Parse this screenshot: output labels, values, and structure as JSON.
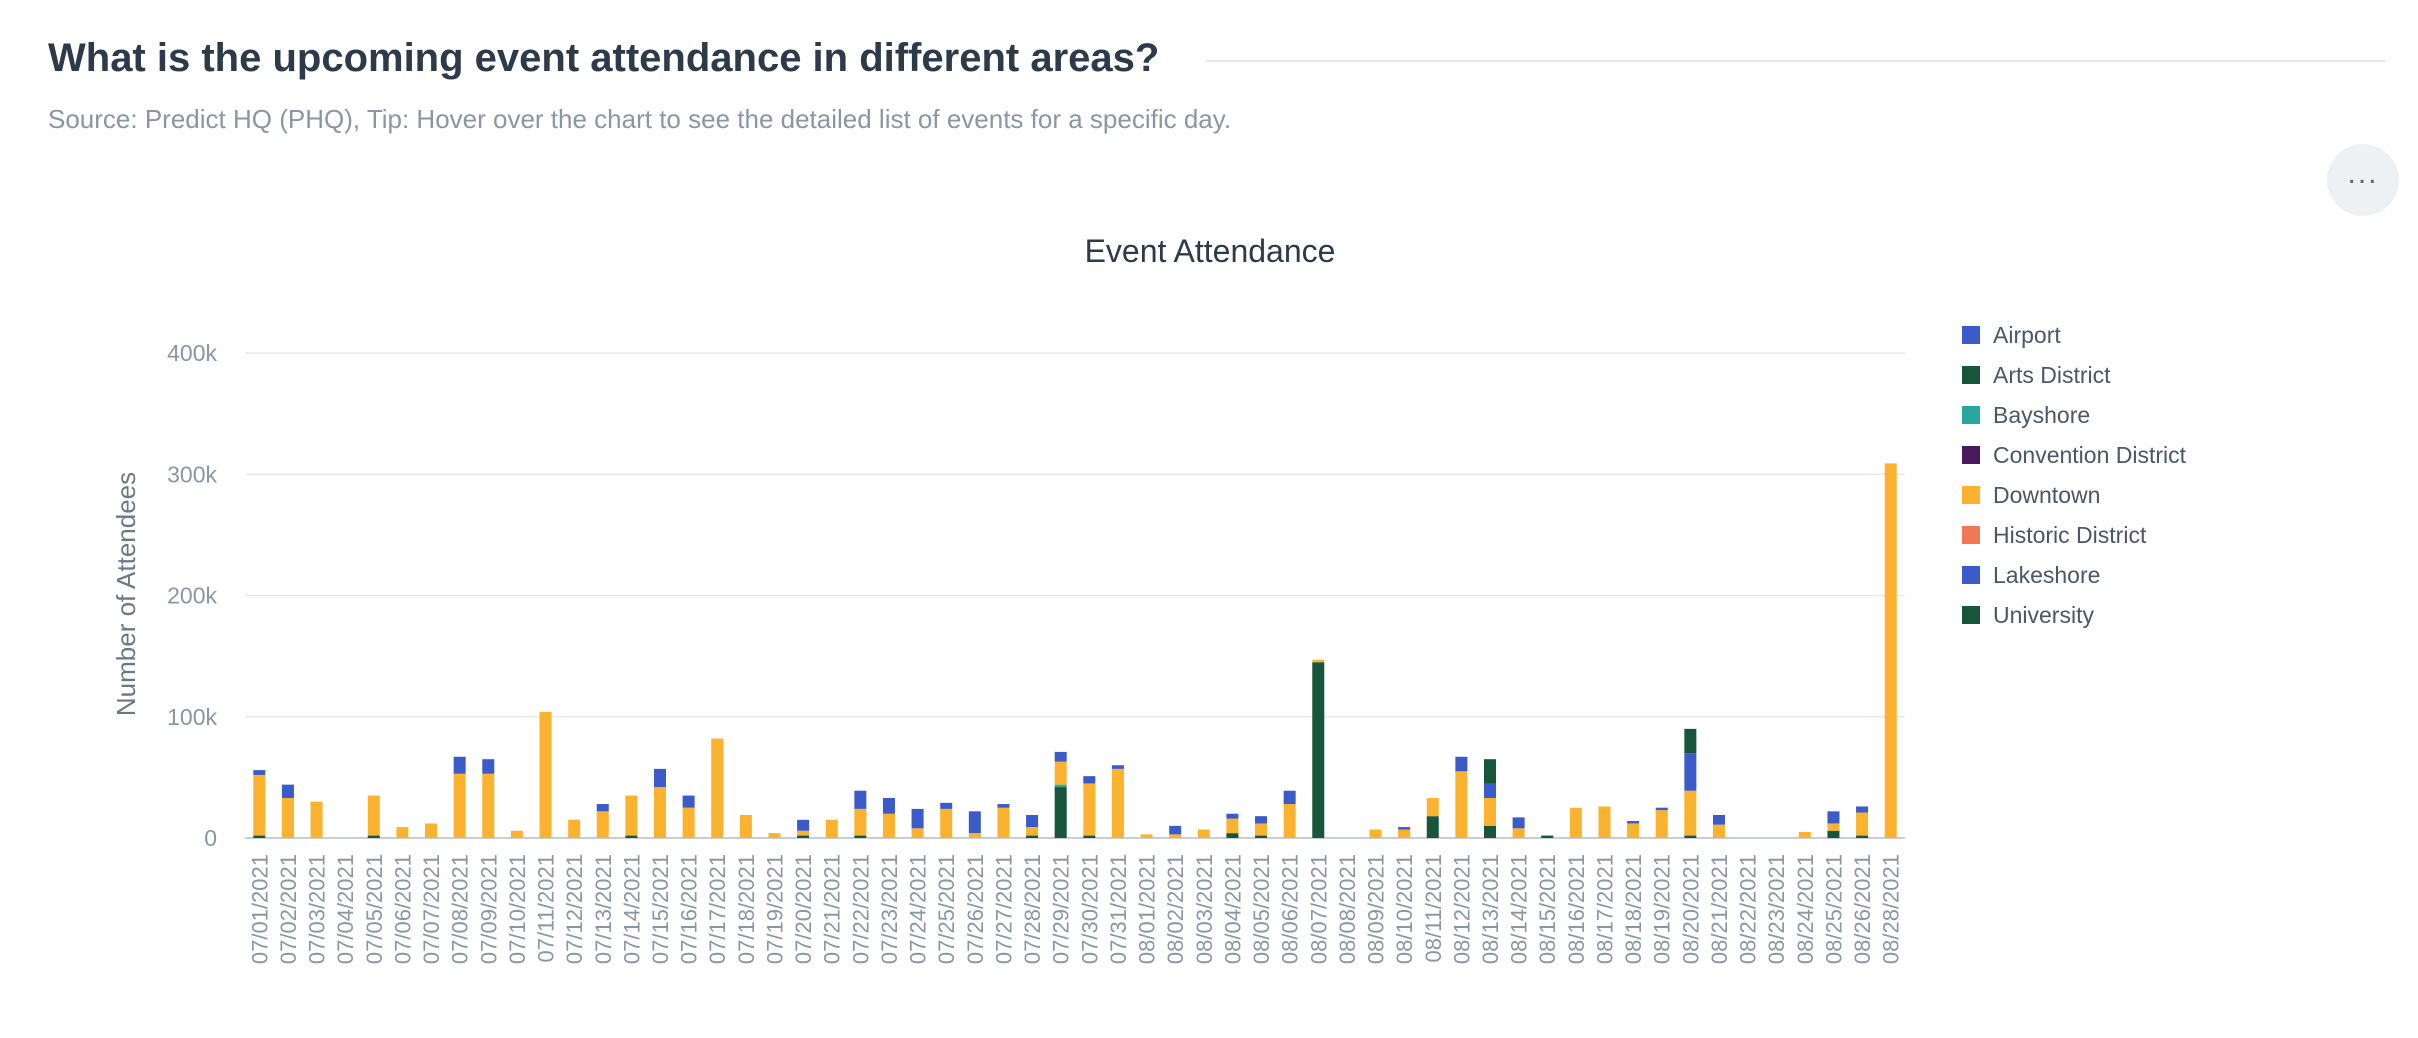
{
  "header": {
    "title": "What is the upcoming event attendance in different areas?",
    "subtitle": "Source: Predict HQ (PHQ), Tip: Hover over the chart to see the detailed list of events for a specific day.",
    "more_label": "..."
  },
  "chart_data": {
    "type": "bar",
    "stacked": true,
    "title": "Event Attendance",
    "xlabel": "",
    "ylabel": "Number of Attendees",
    "ylim": [
      0,
      400000
    ],
    "yticks": [
      0,
      100000,
      200000,
      300000,
      400000
    ],
    "ytick_labels": [
      "0",
      "100k",
      "200k",
      "300k",
      "400k"
    ],
    "grid": true,
    "legend_position": "right",
    "categories": [
      "07/01/2021",
      "07/02/2021",
      "07/03/2021",
      "07/04/2021",
      "07/05/2021",
      "07/06/2021",
      "07/07/2021",
      "07/08/2021",
      "07/09/2021",
      "07/10/2021",
      "07/11/2021",
      "07/12/2021",
      "07/13/2021",
      "07/14/2021",
      "07/15/2021",
      "07/16/2021",
      "07/17/2021",
      "07/18/2021",
      "07/19/2021",
      "07/20/2021",
      "07/21/2021",
      "07/22/2021",
      "07/23/2021",
      "07/24/2021",
      "07/25/2021",
      "07/26/2021",
      "07/27/2021",
      "07/28/2021",
      "07/29/2021",
      "07/30/2021",
      "07/31/2021",
      "08/01/2021",
      "08/02/2021",
      "08/03/2021",
      "08/04/2021",
      "08/05/2021",
      "08/06/2021",
      "08/07/2021",
      "08/08/2021",
      "08/09/2021",
      "08/10/2021",
      "08/11/2021",
      "08/12/2021",
      "08/13/2021",
      "08/14/2021",
      "08/15/2021",
      "08/16/2021",
      "08/17/2021",
      "08/18/2021",
      "08/19/2021",
      "08/20/2021",
      "08/21/2021",
      "08/22/2021",
      "08/23/2021",
      "08/24/2021",
      "08/25/2021",
      "08/26/2021",
      "08/28/2021"
    ],
    "series": [
      {
        "name": "Airport",
        "color": "#3b5bc9",
        "values": [
          0,
          0,
          0,
          0,
          0,
          0,
          0,
          0,
          0,
          0,
          0,
          0,
          0,
          0,
          0,
          0,
          0,
          0,
          0,
          0,
          0,
          0,
          0,
          0,
          0,
          0,
          0,
          0,
          0,
          0,
          0,
          0,
          0,
          0,
          0,
          0,
          0,
          0,
          0,
          0,
          0,
          0,
          0,
          0,
          0,
          0,
          0,
          0,
          0,
          0,
          0,
          0,
          0,
          0,
          0,
          0,
          0,
          0
        ]
      },
      {
        "name": "Arts District",
        "color": "#17563a",
        "values": [
          2000,
          0,
          0,
          0,
          2000,
          0,
          0,
          0,
          0,
          0,
          0,
          0,
          0,
          2000,
          0,
          0,
          0,
          0,
          0,
          2000,
          0,
          2000,
          0,
          0,
          0,
          0,
          0,
          2000,
          42000,
          2000,
          0,
          0,
          0,
          0,
          4000,
          2000,
          0,
          145000,
          0,
          0,
          0,
          18000,
          0,
          10000,
          0,
          2000,
          0,
          0,
          0,
          0,
          2000,
          0,
          0,
          0,
          0,
          6000,
          2000,
          0
        ]
      },
      {
        "name": "Bayshore",
        "color": "#2aa5a0",
        "values": [
          0,
          0,
          0,
          0,
          0,
          0,
          0,
          0,
          0,
          0,
          0,
          0,
          0,
          0,
          0,
          0,
          0,
          0,
          0,
          0,
          0,
          0,
          0,
          0,
          0,
          0,
          0,
          0,
          2000,
          0,
          0,
          0,
          0,
          0,
          0,
          0,
          0,
          0,
          0,
          0,
          0,
          0,
          0,
          0,
          0,
          0,
          0,
          0,
          0,
          0,
          0,
          0,
          0,
          0,
          0,
          0,
          0,
          0
        ]
      },
      {
        "name": "Convention District",
        "color": "#4a1a5e",
        "values": [
          0,
          0,
          0,
          0,
          0,
          0,
          0,
          0,
          0,
          0,
          0,
          0,
          0,
          0,
          0,
          0,
          0,
          0,
          0,
          0,
          0,
          0,
          0,
          0,
          0,
          0,
          0,
          0,
          0,
          0,
          0,
          0,
          0,
          0,
          0,
          0,
          0,
          0,
          0,
          0,
          0,
          0,
          0,
          0,
          0,
          0,
          0,
          0,
          0,
          0,
          0,
          0,
          0,
          0,
          0,
          0,
          0,
          0
        ]
      },
      {
        "name": "Downtown",
        "color": "#fbb22f",
        "values": [
          50000,
          33000,
          30000,
          0,
          33000,
          9000,
          12000,
          53000,
          53000,
          6000,
          104000,
          15000,
          22000,
          33000,
          42000,
          25000,
          82000,
          19000,
          4000,
          4000,
          15000,
          22000,
          20000,
          8000,
          24000,
          4000,
          25000,
          7000,
          19000,
          43000,
          57000,
          3000,
          3000,
          7000,
          12000,
          10000,
          28000,
          2000,
          0,
          7000,
          7000,
          15000,
          55000,
          23000,
          8000,
          0,
          25000,
          26000,
          12000,
          23000,
          37000,
          11000,
          0,
          0,
          5000,
          6000,
          19000,
          309000
        ]
      },
      {
        "name": "Historic District",
        "color": "#f07a55",
        "values": [
          0,
          0,
          0,
          0,
          0,
          0,
          0,
          0,
          0,
          0,
          0,
          0,
          0,
          0,
          0,
          0,
          0,
          0,
          0,
          0,
          0,
          0,
          0,
          0,
          0,
          0,
          0,
          0,
          0,
          0,
          0,
          0,
          0,
          0,
          0,
          0,
          0,
          0,
          0,
          0,
          0,
          0,
          0,
          0,
          0,
          0,
          0,
          0,
          0,
          0,
          0,
          0,
          0,
          0,
          0,
          0,
          0,
          0
        ]
      },
      {
        "name": "Lakeshore",
        "color": "#3b5bc9",
        "values": [
          4000,
          11000,
          0,
          0,
          0,
          0,
          0,
          14000,
          12000,
          0,
          0,
          0,
          6000,
          0,
          15000,
          10000,
          0,
          0,
          0,
          9000,
          0,
          15000,
          13000,
          16000,
          5000,
          18000,
          3000,
          10000,
          8000,
          6000,
          3000,
          0,
          7000,
          0,
          4000,
          6000,
          11000,
          0,
          0,
          0,
          2000,
          0,
          12000,
          12000,
          9000,
          0,
          0,
          0,
          2000,
          2000,
          31000,
          8000,
          0,
          0,
          0,
          10000,
          5000,
          0
        ]
      },
      {
        "name": "University",
        "color": "#17563a",
        "values": [
          0,
          0,
          0,
          0,
          0,
          0,
          0,
          0,
          0,
          0,
          0,
          0,
          0,
          0,
          0,
          0,
          0,
          0,
          0,
          0,
          0,
          0,
          0,
          0,
          0,
          0,
          0,
          0,
          0,
          0,
          0,
          0,
          0,
          0,
          0,
          0,
          0,
          0,
          0,
          0,
          0,
          0,
          0,
          20000,
          0,
          0,
          0,
          0,
          0,
          0,
          20000,
          0,
          0,
          0,
          0,
          0,
          0,
          0
        ]
      }
    ]
  }
}
